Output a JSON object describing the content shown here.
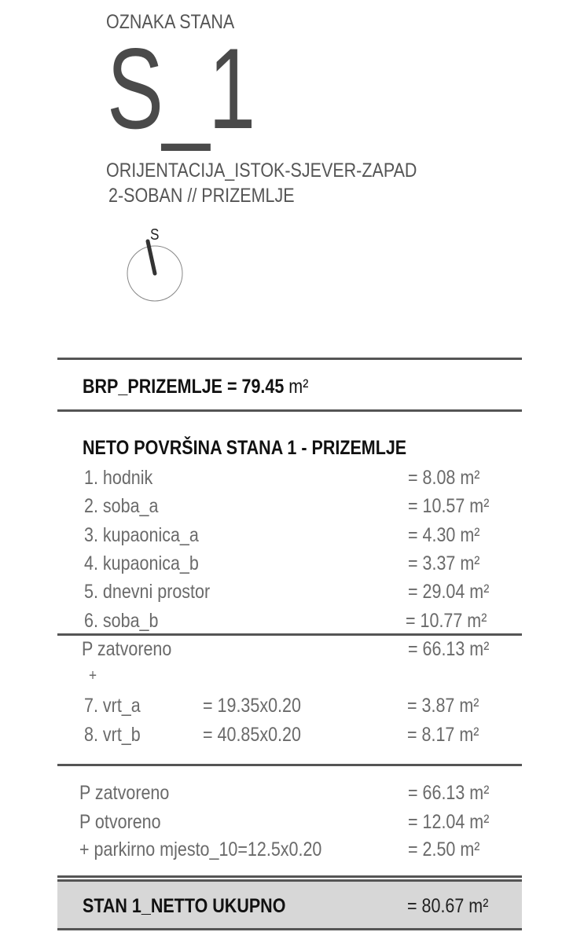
{
  "header": {
    "label": "OZNAKA STANA",
    "code": "S_1",
    "orientation": "ORIJENTACIJA_ISTOK-SJEVER-ZAPAD",
    "type": "2-SOBAN // PRIZEMLJE",
    "compass_letter": "S"
  },
  "brp": {
    "label": "BRP_PRIZEMLJE = 79.45",
    "unit": "m²"
  },
  "neto": {
    "title": "NETO POVRŠINA STANA 1 - PRIZEMLJE",
    "rooms": [
      {
        "name": "1. hodnik",
        "value": "=  8.08 m²"
      },
      {
        "name": "2. soba_a",
        "value": "=  10.57 m²"
      },
      {
        "name": "3. kupaonica_a",
        "value": " =  4.30 m²"
      },
      {
        "name": "4. kupaonica_b",
        "value": " =  3.37 m²"
      },
      {
        "name": "5. dnevni prostor",
        "value": "=  29.04 m²"
      },
      {
        "name": "6. soba_b",
        "value": "=  10.77 m²"
      }
    ],
    "closed": {
      "name": "P zatvoreno",
      "value": "=  66.13 m²"
    },
    "plus": "+",
    "gardens": [
      {
        "name": "7. vrt_a",
        "formula": "= 19.35x0.20",
        "value": "= 3.87 m²"
      },
      {
        "name": "8. vrt_b",
        "formula": "= 40.85x0.20",
        "value": "= 8.17 m²"
      }
    ]
  },
  "summary": [
    {
      "name": "P zatvoreno",
      "value": "=  66.13 m²"
    },
    {
      "name": "P otvoreno",
      "value": "=  12.04 m²"
    },
    {
      "name": "+ parkirno mjesto_10=12.5x0.20",
      "value": "=  2.50 m²"
    }
  ],
  "total": {
    "label": "STAN 1_NETTO UKUPNO",
    "value": "= 80.67 m²"
  }
}
